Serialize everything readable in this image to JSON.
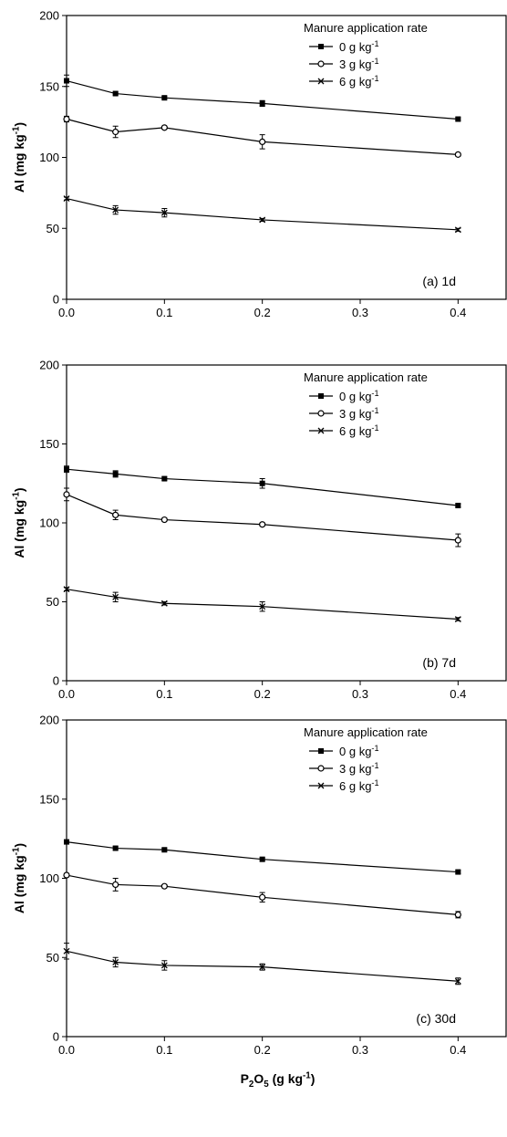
{
  "chart_data": [
    {
      "type": "line",
      "panel_label": "(a) 1d",
      "ylabel": "Al (mg kg-1)",
      "xlabel": "",
      "xlim": [
        0,
        0.45
      ],
      "ylim": [
        0,
        200
      ],
      "xticks": [
        0.0,
        0.1,
        0.2,
        0.3,
        0.4
      ],
      "yticks": [
        0,
        50,
        100,
        150,
        200
      ],
      "x": [
        0,
        0.05,
        0.1,
        0.2,
        0.4
      ],
      "legend": {
        "title": "Manure application rate",
        "placement": "top-right"
      },
      "series": [
        {
          "name": "0 g kg-1",
          "marker": "square",
          "values": [
            154,
            145,
            142,
            138,
            127
          ],
          "errors": [
            4,
            1,
            1,
            2,
            1
          ]
        },
        {
          "name": "3 g kg-1",
          "marker": "circle",
          "values": [
            127,
            118,
            121,
            111,
            102
          ],
          "errors": [
            2,
            4,
            1,
            5,
            1
          ]
        },
        {
          "name": "6 g kg-1",
          "marker": "x",
          "values": [
            71,
            63,
            61,
            56,
            49
          ],
          "errors": [
            1,
            3,
            3,
            1,
            1
          ]
        }
      ]
    },
    {
      "type": "line",
      "panel_label": "(b) 7d",
      "ylabel": "Al (mg kg-1)",
      "xlabel": "",
      "xlim": [
        0,
        0.45
      ],
      "ylim": [
        0,
        200
      ],
      "xticks": [
        0.0,
        0.1,
        0.2,
        0.3,
        0.4
      ],
      "yticks": [
        0,
        50,
        100,
        150,
        200
      ],
      "x": [
        0,
        0.05,
        0.1,
        0.2,
        0.4
      ],
      "legend": {
        "title": "Manure application rate",
        "placement": "top-right"
      },
      "series": [
        {
          "name": "0 g kg-1",
          "marker": "square",
          "values": [
            134,
            131,
            128,
            125,
            111
          ],
          "errors": [
            2,
            2,
            1,
            3,
            1
          ]
        },
        {
          "name": "3 g kg-1",
          "marker": "circle",
          "values": [
            118,
            105,
            102,
            99,
            89
          ],
          "errors": [
            4,
            3,
            1,
            1,
            4
          ]
        },
        {
          "name": "6 g kg-1",
          "marker": "x",
          "values": [
            58,
            53,
            49,
            47,
            39
          ],
          "errors": [
            1,
            3,
            1,
            3,
            1
          ]
        }
      ]
    },
    {
      "type": "line",
      "panel_label": "(c) 30d",
      "ylabel": "Al (mg kg-1)",
      "xlabel": "P2O5 (g kg-1)",
      "xlim": [
        0,
        0.45
      ],
      "ylim": [
        0,
        200
      ],
      "xticks": [
        0.0,
        0.1,
        0.2,
        0.3,
        0.4
      ],
      "yticks": [
        0,
        50,
        100,
        150,
        200
      ],
      "x": [
        0,
        0.05,
        0.1,
        0.2,
        0.4
      ],
      "legend": {
        "title": "Manure application rate",
        "placement": "top-right"
      },
      "series": [
        {
          "name": "0 g kg-1",
          "marker": "square",
          "values": [
            123,
            119,
            118,
            112,
            104
          ],
          "errors": [
            1,
            1,
            1,
            1,
            1
          ]
        },
        {
          "name": "3 g kg-1",
          "marker": "circle",
          "values": [
            102,
            96,
            95,
            88,
            77
          ],
          "errors": [
            1,
            4,
            1,
            3,
            2
          ]
        },
        {
          "name": "6 g kg-1",
          "marker": "x",
          "values": [
            54,
            47,
            45,
            44,
            35
          ],
          "errors": [
            5,
            3,
            3,
            2,
            2
          ]
        }
      ]
    }
  ]
}
